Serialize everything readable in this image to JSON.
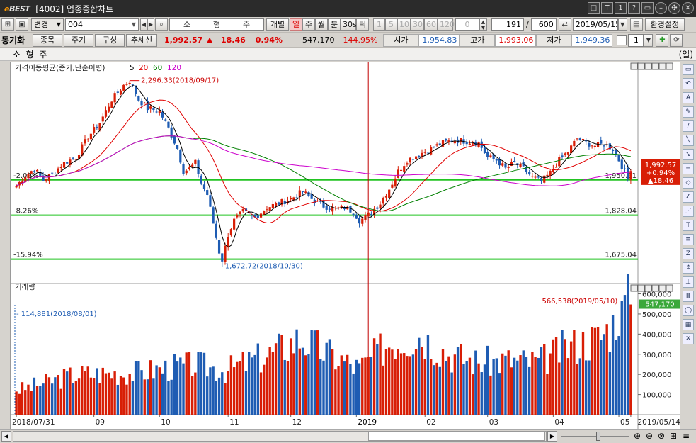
{
  "title": {
    "app": "BEST",
    "screen": "[4002] 업종종합차트"
  },
  "toolbar1": {
    "mode_select": "변경",
    "code": "004",
    "name_parts": [
      "소",
      "형",
      "주"
    ],
    "view_btn": "개별",
    "periods": [
      "일",
      "주",
      "월",
      "분",
      "30s",
      "틱"
    ],
    "active_period": "일",
    "minute_opts": [
      "1",
      "5",
      "10",
      "30",
      "60",
      "120"
    ],
    "count_small": "0",
    "count": "191",
    "total": "600",
    "date": "2019/05/15",
    "settings_btn": "환경설정"
  },
  "toolbar2": {
    "sync_label": "동기화",
    "buttons": [
      "종목",
      "주기",
      "구성",
      "추세선"
    ],
    "price": "1,992.57",
    "change": "18.46",
    "change_pct": "0.94%",
    "volume": "547,170",
    "vol_ratio": "144.95%",
    "open_label": "시가",
    "open": "1,954.83",
    "high_label": "고가",
    "high": "1,993.06",
    "low_label": "저가",
    "low": "1,949.36",
    "spin_value": "1"
  },
  "subject": {
    "name": "소  형  주",
    "unit": "(일)"
  },
  "price_pane": {
    "legend_title": "가격이동평균(종가,단순이평)",
    "ma_periods": [
      "5",
      "20",
      "60",
      "120"
    ],
    "ma_colors": [
      "#000000",
      "#e00000",
      "#008000",
      "#cc00cc"
    ],
    "high_annot": "2,296.33(2018/09/17)",
    "low_annot": "1,672.72(2018/10/30)",
    "levels": [
      {
        "pct": "-2.09%",
        "value": "1,950.91",
        "price": 1950.91
      },
      {
        "pct": "-8.26%",
        "value": "1,828.04",
        "price": 1828.04
      },
      {
        "pct": "-15.94%",
        "value": "1,675.04",
        "price": 1675.04
      }
    ],
    "last_tag": [
      "1,992.57",
      "+0.94%",
      "▲18.46"
    ]
  },
  "volume_pane": {
    "title": "거래량",
    "min_annot": "114,881(2018/08/01)",
    "max_annot": "566,538(2019/05/10)",
    "last_tag": "547,170",
    "y_ticks": [
      "600,000",
      "500,000",
      "400,000",
      "300,000",
      "200,000",
      "100,000"
    ]
  },
  "x_axis": {
    "labels": [
      "2018/07/31",
      "09",
      "10",
      "11",
      "12",
      "2019",
      "02",
      "03",
      "04",
      "05",
      "2019/05/14"
    ]
  },
  "colors": {
    "up": "#d81e06",
    "down": "#1e5cb3",
    "level_line": "#22c322",
    "cursor": "#c00000"
  },
  "chart_data": {
    "type": "candlestick+volume",
    "price_range": [
      1620,
      2330
    ],
    "volume_range": [
      0,
      630000
    ],
    "anchors": [
      [
        0,
        1930
      ],
      [
        3,
        1965
      ],
      [
        6,
        1990
      ],
      [
        9,
        1950
      ],
      [
        12,
        1972
      ],
      [
        16,
        2010
      ],
      [
        20,
        2030
      ],
      [
        24,
        2100
      ],
      [
        28,
        2150
      ],
      [
        32,
        2230
      ],
      [
        36,
        2280
      ],
      [
        38,
        2296
      ],
      [
        41,
        2230
      ],
      [
        44,
        2200
      ],
      [
        48,
        2190
      ],
      [
        51,
        2130
      ],
      [
        54,
        2060
      ],
      [
        56,
        1980
      ],
      [
        58,
        1990
      ],
      [
        60,
        2010
      ],
      [
        62,
        1940
      ],
      [
        64,
        1900
      ],
      [
        66,
        1800
      ],
      [
        68,
        1700
      ],
      [
        69,
        1673
      ],
      [
        71,
        1760
      ],
      [
        73,
        1810
      ],
      [
        76,
        1840
      ],
      [
        80,
        1820
      ],
      [
        84,
        1855
      ],
      [
        88,
        1870
      ],
      [
        92,
        1885
      ],
      [
        96,
        1910
      ],
      [
        99,
        1885
      ],
      [
        103,
        1860
      ],
      [
        107,
        1850
      ],
      [
        110,
        1855
      ],
      [
        113,
        1840
      ],
      [
        115,
        1810
      ],
      [
        117,
        1820
      ],
      [
        119,
        1840
      ],
      [
        122,
        1870
      ],
      [
        125,
        1920
      ],
      [
        128,
        1980
      ],
      [
        131,
        2020
      ],
      [
        135,
        2040
      ],
      [
        139,
        2060
      ],
      [
        143,
        2080
      ],
      [
        147,
        2090
      ],
      [
        151,
        2085
      ],
      [
        155,
        2080
      ],
      [
        158,
        2030
      ],
      [
        161,
        2020
      ],
      [
        164,
        1990
      ],
      [
        167,
        2010
      ],
      [
        170,
        1990
      ],
      [
        173,
        1960
      ],
      [
        176,
        1945
      ],
      [
        179,
        1975
      ],
      [
        182,
        2020
      ],
      [
        185,
        2050
      ],
      [
        188,
        2095
      ],
      [
        191,
        2080
      ],
      [
        194,
        2070
      ],
      [
        197,
        2075
      ],
      [
        200,
        2060
      ],
      [
        203,
        2000
      ],
      [
        205,
        1955
      ],
      [
        206,
        1992
      ]
    ],
    "volume_profile": [
      [
        0,
        120000
      ],
      [
        20,
        200000
      ],
      [
        40,
        210000
      ],
      [
        60,
        250000
      ],
      [
        70,
        220000
      ],
      [
        85,
        300000
      ],
      [
        95,
        380000
      ],
      [
        105,
        300000
      ],
      [
        115,
        230000
      ],
      [
        125,
        360000
      ],
      [
        135,
        400000
      ],
      [
        145,
        300000
      ],
      [
        155,
        260000
      ],
      [
        165,
        270000
      ],
      [
        175,
        260000
      ],
      [
        185,
        340000
      ],
      [
        195,
        380000
      ],
      [
        200,
        450000
      ],
      [
        203,
        566538
      ],
      [
        206,
        547170
      ]
    ]
  }
}
